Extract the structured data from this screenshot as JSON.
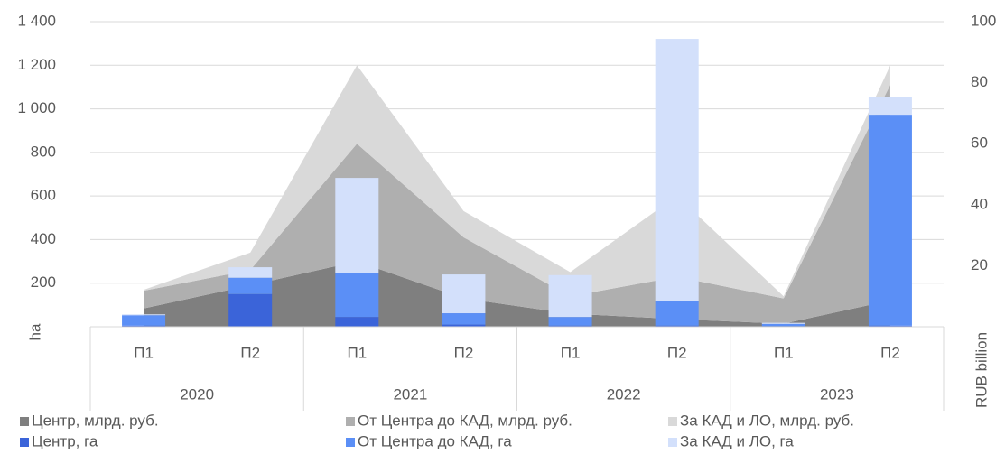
{
  "chart_data": {
    "type": "bar-area-combo",
    "categories": [
      "П1",
      "П2",
      "П1",
      "П2",
      "П1",
      "П2",
      "П1",
      "П2"
    ],
    "groups": [
      "2020",
      "2021",
      "2022",
      "2023"
    ],
    "ylabel": "ha",
    "y2label": "RUB billion",
    "ylim": [
      0,
      1400
    ],
    "yticks": [
      200,
      400,
      600,
      800,
      {
        "value": 1000,
        "label": "1 000"
      },
      {
        "value": 1200,
        "label": "1 200"
      },
      {
        "value": 1400,
        "label": "1 400"
      }
    ],
    "y2lim": [
      0,
      100
    ],
    "y2ticks": [
      20,
      40,
      60,
      80,
      100
    ],
    "grid": true,
    "legend": "bottom",
    "series": [
      {
        "name": "Центр, млрд. руб.",
        "color": "#7f7f7f",
        "type": "area",
        "axis": "y2",
        "values": [
          6,
          13.6,
          21.4,
          9.3,
          4.3,
          2.5,
          1,
          8.6
        ]
      },
      {
        "name": "От Центра до КАД, млрд. руб.",
        "color": "#afafaf",
        "type": "area",
        "axis": "y2",
        "values": [
          5.8,
          5,
          38.6,
          20,
          5.7,
          13.9,
          8.3,
          70.7
        ]
      },
      {
        "name": "За КАД и ЛО, млрд. руб.",
        "color": "#d9d9d9",
        "type": "area",
        "axis": "y2",
        "values": [
          0.3,
          5.7,
          25.7,
          8.6,
          7.9,
          26.5,
          0.7,
          6.4
        ]
      },
      {
        "name": "Центр, га",
        "color": "#3b64d9",
        "type": "bar",
        "values": [
          5,
          150,
          45,
          10,
          5,
          5,
          3,
          5
        ]
      },
      {
        "name": "От Центра до КАД, га",
        "color": "#5b8ff6",
        "type": "bar",
        "values": [
          48,
          75,
          203,
          52,
          40,
          111,
          10,
          968
        ]
      },
      {
        "name": "За КАД и ЛО, га",
        "color": "#d3e0fb",
        "type": "bar",
        "values": [
          4,
          48,
          435,
          178,
          192,
          1205,
          5,
          80
        ]
      }
    ]
  }
}
